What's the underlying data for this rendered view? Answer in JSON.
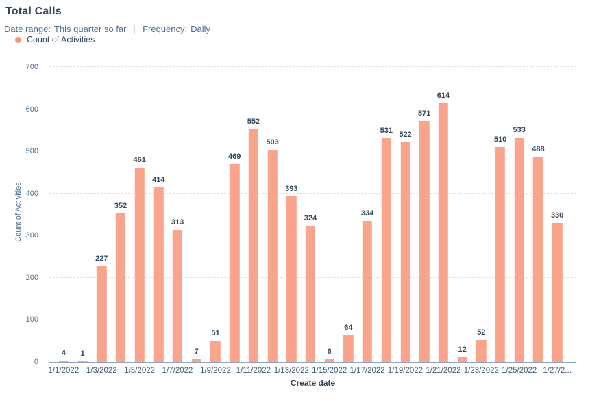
{
  "header": {
    "title": "Total Calls",
    "filters": {
      "date_range_label": "Date range:",
      "date_range_value": "This quarter so far",
      "separator": "|",
      "frequency_label": "Frequency:",
      "frequency_value": "Daily"
    },
    "legend": [
      {
        "label": "Count of Activities",
        "color": "#f8947b",
        "shape": "circle-icon"
      }
    ]
  },
  "chart_data": {
    "type": "bar",
    "title": "Total Calls",
    "xlabel": "Create date",
    "ylabel": "Count of Activities",
    "ylim": [
      0,
      700
    ],
    "yticks": [
      0,
      100,
      200,
      300,
      400,
      500,
      600,
      700
    ],
    "grid": "horizontal dashed",
    "legend_position": "top-left",
    "data_labels": true,
    "series_name": "Count of Activities",
    "bar_color": "#fba48c",
    "categories": [
      "1/1/2022",
      "1/2/2022",
      "1/3/2022",
      "1/4/2022",
      "1/5/2022",
      "1/6/2022",
      "1/7/2022",
      "1/8/2022",
      "1/9/2022",
      "1/10/2022",
      "1/11/2022",
      "1/12/2022",
      "1/13/2022",
      "1/14/2022",
      "1/15/2022",
      "1/16/2022",
      "1/17/2022",
      "1/18/2022",
      "1/19/2022",
      "1/20/2022",
      "1/21/2022",
      "1/22/2022",
      "1/23/2022",
      "1/24/2022",
      "1/25/2022",
      "1/26/2022",
      "1/27/2022"
    ],
    "values": [
      4,
      1,
      227,
      352,
      461,
      414,
      313,
      7,
      51,
      469,
      552,
      503,
      393,
      324,
      6,
      64,
      334,
      531,
      522,
      571,
      614,
      12,
      52,
      510,
      533,
      488,
      330
    ],
    "xticks": [
      {
        "index": 0,
        "label": "1/1/2022"
      },
      {
        "index": 2,
        "label": "1/3/2022"
      },
      {
        "index": 4,
        "label": "1/5/2022"
      },
      {
        "index": 6,
        "label": "1/7/2022"
      },
      {
        "index": 8,
        "label": "1/9/2022"
      },
      {
        "index": 10,
        "label": "1/11/2022"
      },
      {
        "index": 12,
        "label": "1/13/2022"
      },
      {
        "index": 14,
        "label": "1/15/2022"
      },
      {
        "index": 16,
        "label": "1/17/2022"
      },
      {
        "index": 18,
        "label": "1/19/2022"
      },
      {
        "index": 20,
        "label": "1/21/2022"
      },
      {
        "index": 22,
        "label": "1/23/2022"
      },
      {
        "index": 24,
        "label": "1/25/2022"
      },
      {
        "index": 26,
        "label": "1/27/2..."
      }
    ]
  },
  "colors": {
    "bar": "#fba48c",
    "legend_dot": "#f8947b",
    "title_text": "#33475b",
    "subtitle_text": "#516f90",
    "tick_text": "#425b76",
    "grid_line": "#d9e0e8",
    "axis_line": "#8da4ba"
  }
}
